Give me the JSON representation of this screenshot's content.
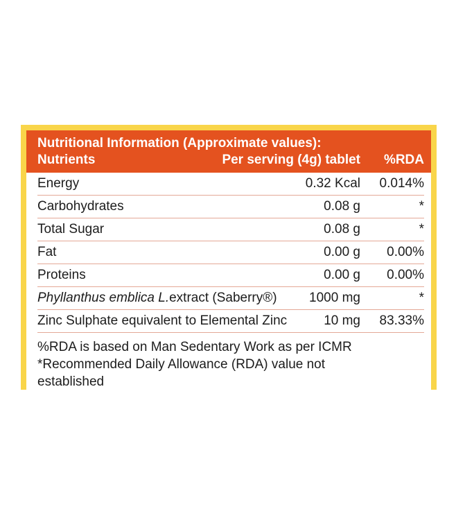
{
  "header": {
    "title": "Nutritional Information (Approximate values):",
    "col_nutrients": "Nutrients",
    "col_serving": "Per serving (4g) tablet",
    "col_rda": "%RDA"
  },
  "rows": [
    {
      "name": "Energy",
      "serving": "0.32 Kcal",
      "rda": "0.014%"
    },
    {
      "name": "Carbohydrates",
      "serving": "0.08 g",
      "rda": "*"
    },
    {
      "name": "Total Sugar",
      "serving": "0.08 g",
      "rda": "*"
    },
    {
      "name": "Fat",
      "serving": "0.00 g",
      "rda": "0.00%"
    },
    {
      "name": "Proteins",
      "serving": "0.00 g",
      "rda": "0.00%"
    },
    {
      "name_italic": "Phyllanthus emblica L.",
      "name_rest": "extract (Saberry®)",
      "serving": "1000 mg",
      "rda": "*"
    },
    {
      "name": "Zinc Sulphate equivalent to Elemental Zinc",
      "serving": "10 mg",
      "rda": "83.33%"
    }
  ],
  "notes": {
    "line1": "%RDA is based on Man Sedentary Work as per ICMR",
    "line2": "*Recommended Daily Allowance (RDA) value not",
    "line3": "established"
  },
  "colors": {
    "header_bg": "#e4521f",
    "frame": "#f9d54a",
    "divider": "#e4a896"
  }
}
